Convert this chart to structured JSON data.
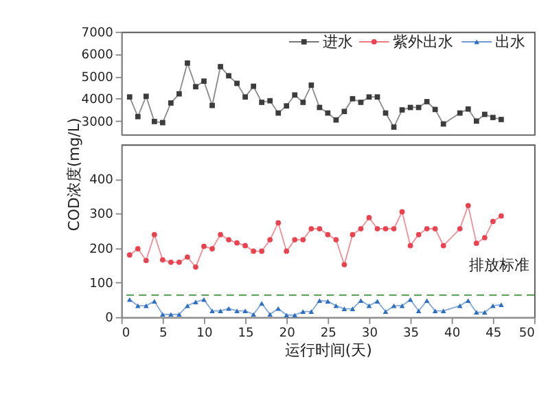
{
  "chart_data": [
    {
      "type": "line",
      "x": [
        1,
        2,
        3,
        4,
        5,
        6,
        7,
        8,
        9,
        10,
        11,
        12,
        13,
        14,
        15,
        16,
        17,
        18,
        19,
        20,
        21,
        22,
        23,
        24,
        25,
        26,
        27,
        28,
        29,
        30,
        31,
        32,
        33,
        34,
        35,
        36,
        37,
        38,
        39,
        41,
        42,
        43,
        44,
        45,
        46
      ],
      "xlim": [
        0,
        50
      ],
      "ylim": [
        2400,
        7000
      ],
      "yticks": [
        3000,
        4000,
        5000,
        6000,
        7000
      ],
      "tick_labels": "y",
      "grid": false,
      "legend": "top right",
      "series": [
        {
          "name": "进水",
          "color": "#3c3c3c",
          "marker": "square",
          "values": [
            4080,
            3200,
            4110,
            2980,
            2930,
            3810,
            4220,
            5600,
            4540,
            4790,
            3700,
            5440,
            5030,
            4690,
            4080,
            4560,
            3840,
            3910,
            3360,
            3680,
            4170,
            3840,
            4610,
            3610,
            3360,
            3050,
            3430,
            4000,
            3840,
            4080,
            4080,
            3360,
            2730,
            3500,
            3610,
            3610,
            3870,
            3520,
            2870,
            3360,
            3540,
            3000,
            3300,
            3160,
            3070
          ]
        }
      ]
    },
    {
      "type": "line",
      "xlabel": "运行时间(天)",
      "legend": "top right",
      "x": [
        1,
        2,
        3,
        4,
        5,
        6,
        7,
        8,
        9,
        10,
        11,
        12,
        13,
        14,
        15,
        16,
        17,
        18,
        19,
        20,
        21,
        22,
        23,
        24,
        25,
        26,
        27,
        28,
        29,
        30,
        31,
        32,
        33,
        34,
        35,
        36,
        37,
        38,
        39,
        41,
        42,
        43,
        44,
        45,
        46
      ],
      "xlim": [
        0,
        50
      ],
      "xticks": [
        0,
        5,
        10,
        15,
        20,
        25,
        30,
        35,
        40,
        45,
        50
      ],
      "ylim": [
        0,
        500
      ],
      "yticks": [
        0,
        100,
        200,
        300,
        400
      ],
      "grid": false,
      "ylabel": "COD浓度(mg/L)",
      "ref_lines": [
        {
          "axis": "y",
          "value": 64,
          "label": "排放标准",
          "color": "#3a8a3a",
          "line_style": "dashed"
        }
      ],
      "series": [
        {
          "name": "紫外出水",
          "color": "#e8434f",
          "marker": "circle",
          "values": [
            180,
            198,
            164,
            239,
            166,
            159,
            159,
            174,
            145,
            205,
            198,
            239,
            224,
            215,
            207,
            191,
            191,
            224,
            273,
            191,
            224,
            224,
            256,
            256,
            239,
            224,
            152,
            239,
            256,
            288,
            256,
            256,
            256,
            305,
            207,
            239,
            256,
            256,
            207,
            256,
            323,
            214,
            230,
            277,
            293
          ]
        },
        {
          "name": "出水",
          "color": "#2f6fc0",
          "marker": "triangle",
          "values": [
            51,
            33,
            33,
            46,
            8,
            8,
            8,
            33,
            44,
            51,
            18,
            18,
            25,
            18,
            18,
            8,
            40,
            8,
            25,
            6,
            6,
            16,
            16,
            48,
            46,
            33,
            24,
            24,
            48,
            33,
            46,
            16,
            33,
            33,
            51,
            18,
            48,
            18,
            18,
            33,
            48,
            14,
            14,
            33,
            36
          ]
        }
      ]
    }
  ]
}
